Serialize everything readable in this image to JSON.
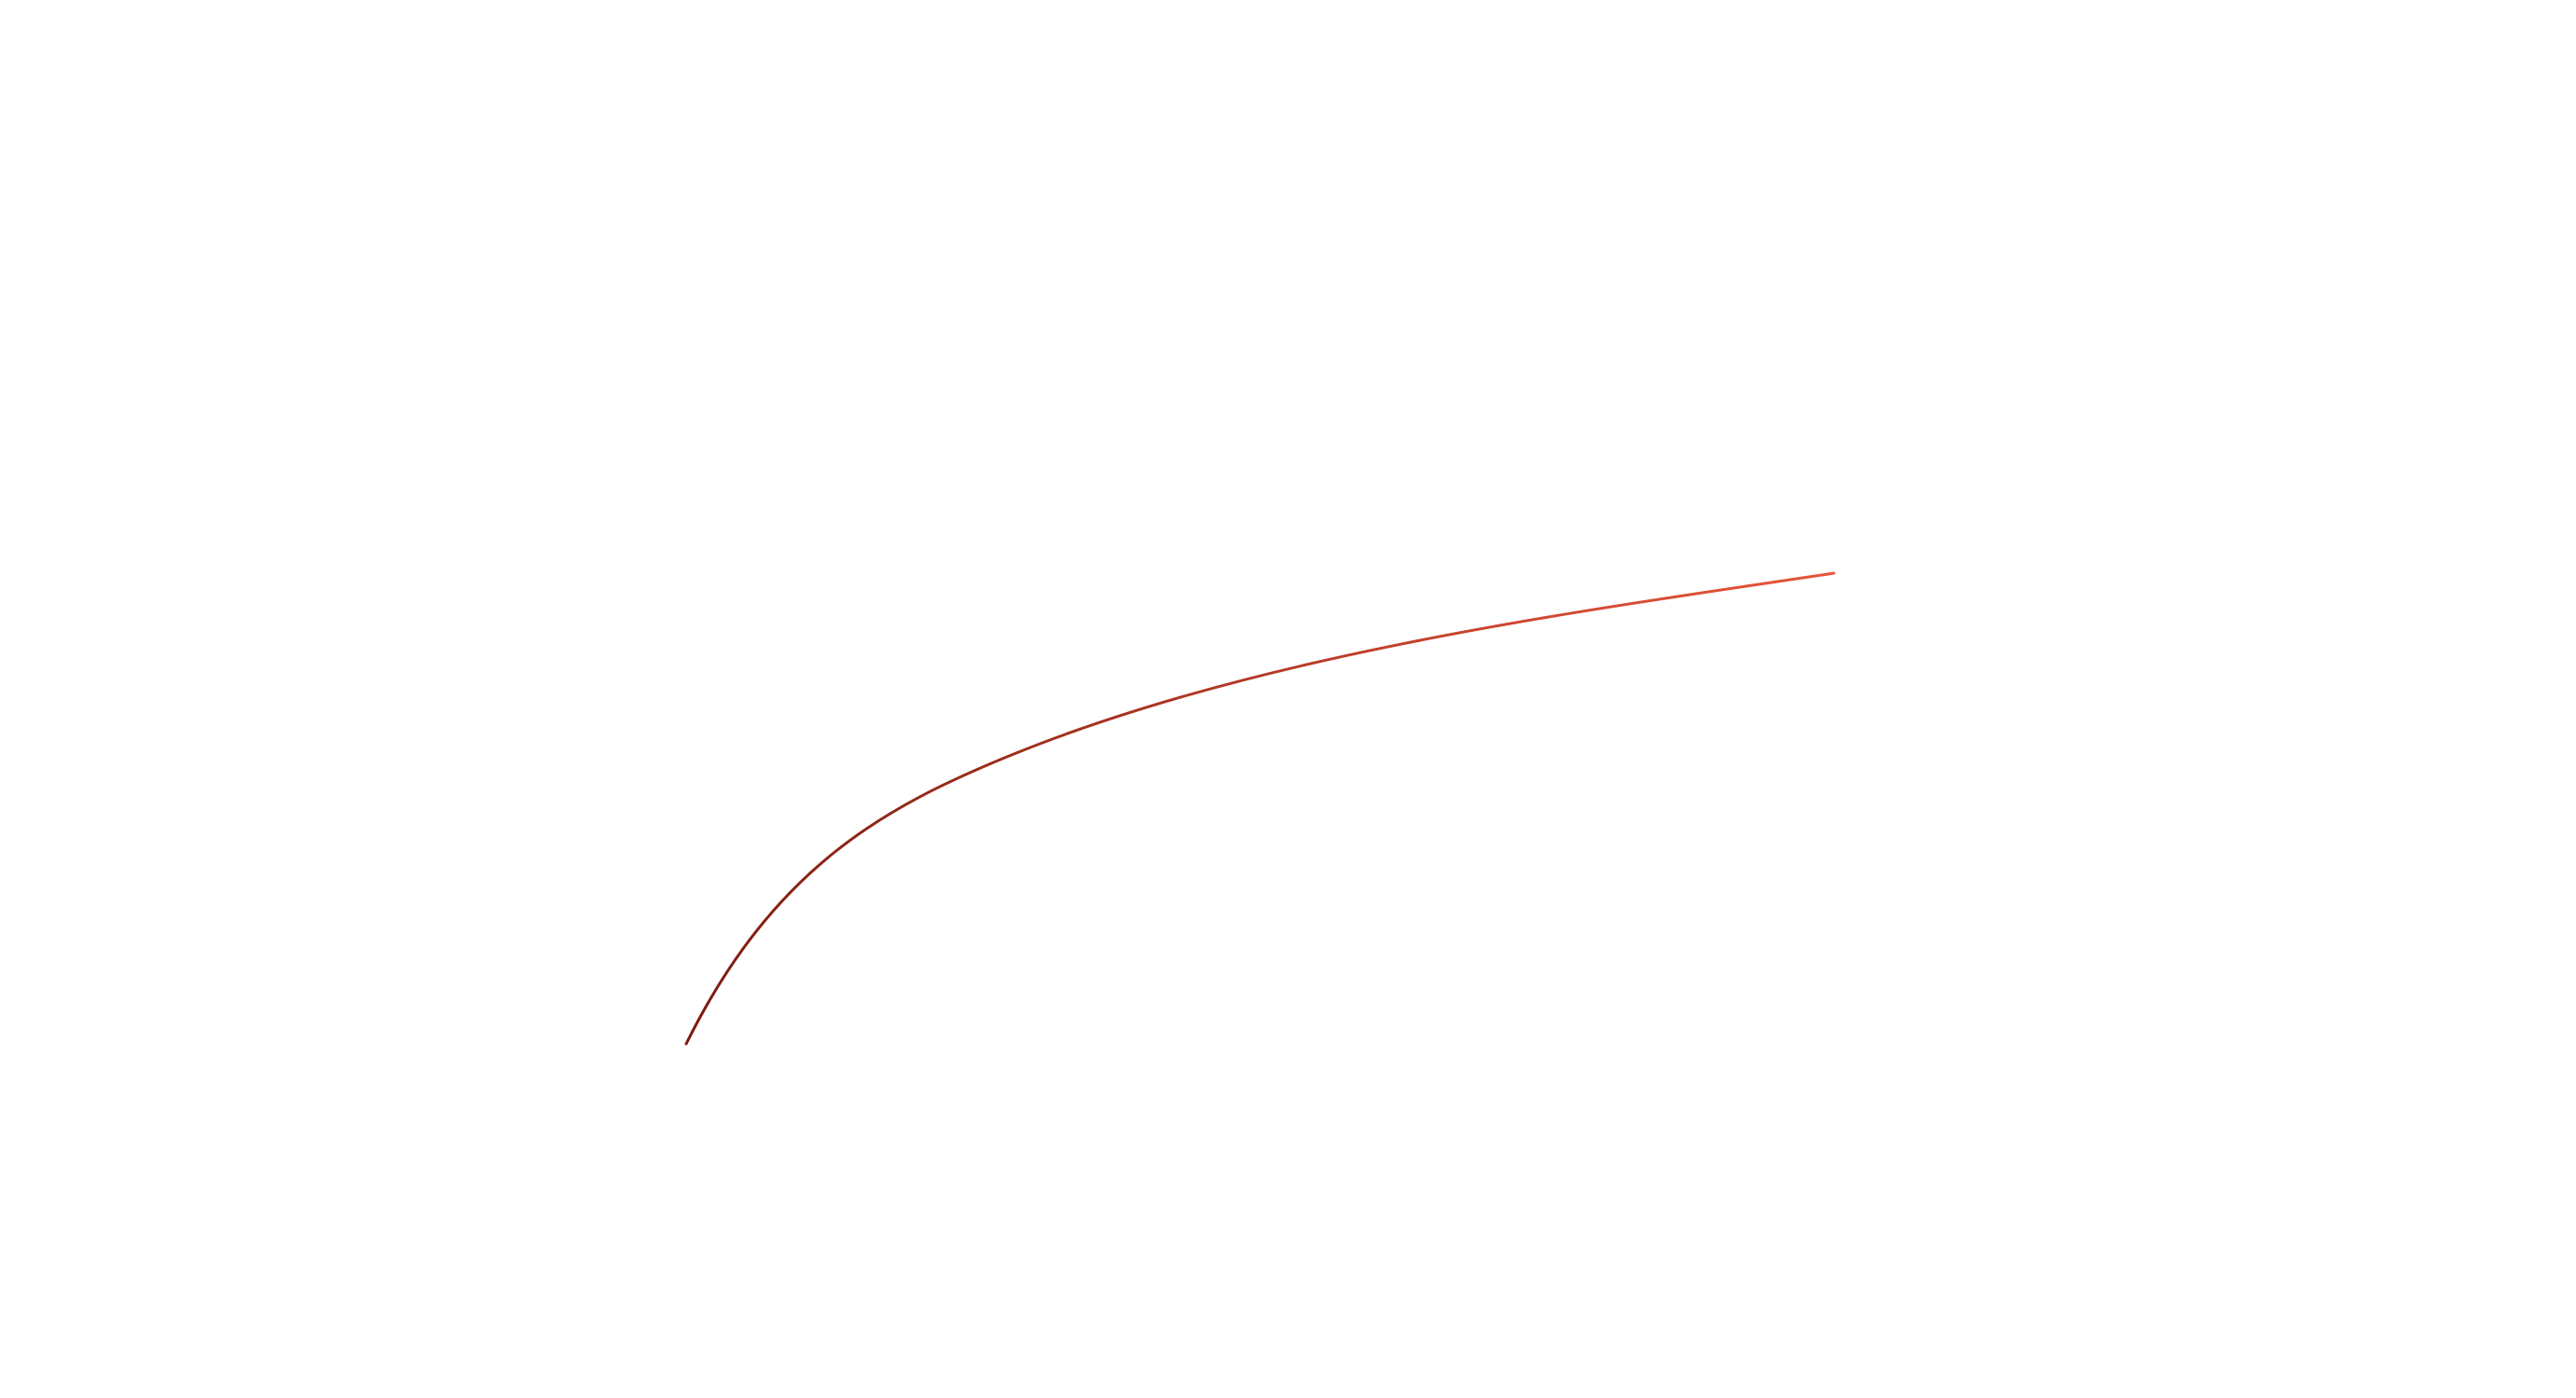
{
  "scene": {
    "background_color": "#ffffff",
    "stroke": {
      "gradient_start_color": "#7a1a0e",
      "gradient_end_color": "#e8553a"
    }
  }
}
